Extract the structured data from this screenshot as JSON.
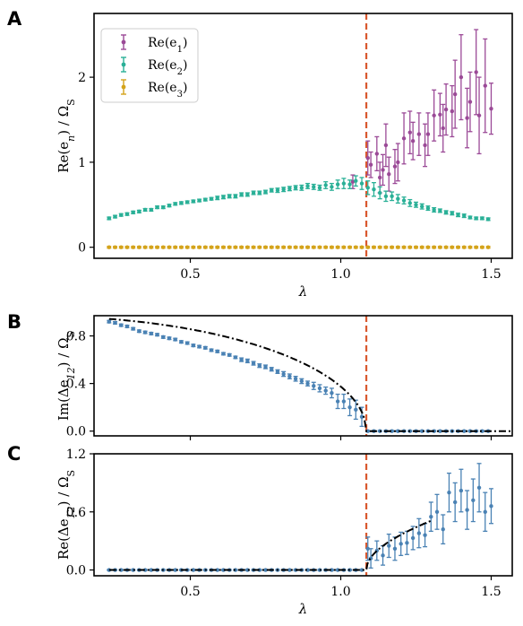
{
  "panel_letters": [
    "A",
    "B",
    "C"
  ],
  "chart_data": [
    {
      "id": "A",
      "type": "scatter",
      "xlabel": "λ",
      "ylabel": "Re(e_n) / Ω_S",
      "ylabel_parts": {
        "main": "Re(e",
        "sub": "n",
        "rest": ") / Ω",
        "sub2": "S"
      },
      "xlim": [
        0.18,
        1.57
      ],
      "ylim": [
        -0.13,
        2.75
      ],
      "xticks": [
        0.5,
        1.0,
        1.5
      ],
      "xtick_labels": [
        "0.5",
        "1.0",
        "1.5"
      ],
      "yticks": [
        0,
        1,
        2
      ],
      "ytick_labels": [
        "0",
        "1",
        "2"
      ],
      "vline": 1.085,
      "vline_color": "#d9582e",
      "legend_position": "top-left",
      "series": [
        {
          "name": "Re(e1)",
          "label_main": "Re(e",
          "label_sub": "1",
          "color": "#9b4a97",
          "x": [
            1.04,
            1.09,
            1.1,
            1.12,
            1.13,
            1.14,
            1.15,
            1.16,
            1.18,
            1.19,
            1.21,
            1.23,
            1.24,
            1.26,
            1.28,
            1.29,
            1.31,
            1.33,
            1.34,
            1.35,
            1.37,
            1.38,
            1.4,
            1.42,
            1.43,
            1.45,
            1.46,
            1.48,
            1.5
          ],
          "y": [
            0.77,
            1.05,
            0.97,
            1.1,
            0.82,
            0.91,
            1.2,
            0.86,
            0.95,
            1.0,
            1.28,
            1.35,
            1.25,
            1.33,
            1.2,
            1.33,
            1.55,
            1.56,
            1.4,
            1.62,
            1.6,
            1.8,
            2.0,
            1.52,
            1.71,
            2.06,
            1.55,
            1.9,
            1.63
          ],
          "err": [
            0.08,
            0.2,
            0.15,
            0.2,
            0.18,
            0.18,
            0.25,
            0.2,
            0.2,
            0.22,
            0.3,
            0.25,
            0.22,
            0.25,
            0.25,
            0.25,
            0.3,
            0.25,
            0.28,
            0.3,
            0.3,
            0.4,
            0.5,
            0.35,
            0.35,
            0.5,
            0.45,
            0.55,
            0.3
          ]
        },
        {
          "name": "Re(e2)",
          "label_main": "Re(e",
          "label_sub": "2",
          "color": "#2ab097",
          "x": [
            0.23,
            0.25,
            0.27,
            0.29,
            0.31,
            0.33,
            0.35,
            0.37,
            0.39,
            0.41,
            0.43,
            0.45,
            0.47,
            0.49,
            0.51,
            0.53,
            0.55,
            0.57,
            0.59,
            0.61,
            0.63,
            0.65,
            0.67,
            0.69,
            0.71,
            0.73,
            0.75,
            0.77,
            0.79,
            0.81,
            0.83,
            0.85,
            0.87,
            0.89,
            0.91,
            0.93,
            0.95,
            0.97,
            0.99,
            1.01,
            1.03,
            1.05,
            1.07,
            1.09,
            1.11,
            1.13,
            1.15,
            1.17,
            1.19,
            1.21,
            1.23,
            1.25,
            1.27,
            1.29,
            1.31,
            1.33,
            1.35,
            1.37,
            1.39,
            1.41,
            1.43,
            1.45,
            1.47,
            1.49
          ],
          "y": [
            0.34,
            0.36,
            0.38,
            0.39,
            0.41,
            0.42,
            0.44,
            0.44,
            0.47,
            0.47,
            0.49,
            0.51,
            0.52,
            0.53,
            0.54,
            0.55,
            0.56,
            0.57,
            0.58,
            0.59,
            0.6,
            0.6,
            0.62,
            0.62,
            0.64,
            0.64,
            0.65,
            0.67,
            0.67,
            0.68,
            0.69,
            0.7,
            0.7,
            0.72,
            0.71,
            0.7,
            0.73,
            0.71,
            0.74,
            0.75,
            0.74,
            0.78,
            0.75,
            0.7,
            0.68,
            0.64,
            0.6,
            0.6,
            0.57,
            0.55,
            0.52,
            0.5,
            0.48,
            0.46,
            0.44,
            0.43,
            0.41,
            0.4,
            0.38,
            0.37,
            0.35,
            0.34,
            0.34,
            0.33
          ],
          "err": [
            0.015,
            0.015,
            0.015,
            0.015,
            0.015,
            0.015,
            0.015,
            0.015,
            0.015,
            0.015,
            0.015,
            0.015,
            0.015,
            0.015,
            0.015,
            0.015,
            0.015,
            0.015,
            0.02,
            0.02,
            0.02,
            0.02,
            0.02,
            0.02,
            0.02,
            0.02,
            0.02,
            0.02,
            0.025,
            0.025,
            0.025,
            0.025,
            0.03,
            0.03,
            0.03,
            0.03,
            0.04,
            0.04,
            0.05,
            0.06,
            0.05,
            0.06,
            0.07,
            0.08,
            0.08,
            0.07,
            0.06,
            0.05,
            0.05,
            0.04,
            0.04,
            0.03,
            0.03,
            0.025,
            0.025,
            0.02,
            0.02,
            0.02,
            0.02,
            0.02,
            0.015,
            0.015,
            0.015,
            0.015
          ]
        },
        {
          "name": "Re(e3)",
          "label_main": "Re(e",
          "label_sub": "3",
          "color": "#d4a31a",
          "x": [
            0.23,
            0.25,
            0.27,
            0.29,
            0.31,
            0.33,
            0.35,
            0.37,
            0.39,
            0.41,
            0.43,
            0.45,
            0.47,
            0.49,
            0.51,
            0.53,
            0.55,
            0.57,
            0.59,
            0.61,
            0.63,
            0.65,
            0.67,
            0.69,
            0.71,
            0.73,
            0.75,
            0.77,
            0.79,
            0.81,
            0.83,
            0.85,
            0.87,
            0.89,
            0.91,
            0.93,
            0.95,
            0.97,
            0.99,
            1.01,
            1.03,
            1.05,
            1.07,
            1.09,
            1.11,
            1.13,
            1.15,
            1.17,
            1.19,
            1.21,
            1.23,
            1.25,
            1.27,
            1.29,
            1.31,
            1.33,
            1.35,
            1.37,
            1.39,
            1.41,
            1.43,
            1.45,
            1.47,
            1.49
          ],
          "y": [
            0,
            0,
            0,
            0,
            0,
            0,
            0,
            0,
            0,
            0,
            0,
            0,
            0,
            0,
            0,
            0,
            0,
            0,
            0,
            0,
            0,
            0,
            0,
            0,
            0,
            0,
            0,
            0,
            0,
            0,
            0,
            0,
            0,
            0,
            0,
            0,
            0,
            0,
            0,
            0,
            0,
            0,
            0,
            0,
            0,
            0,
            0,
            0,
            0,
            0,
            0,
            0,
            0,
            0,
            0,
            0,
            0,
            0,
            0,
            0,
            0,
            0,
            0,
            0
          ],
          "err": [
            0.01,
            0.01,
            0.01,
            0.01,
            0.01,
            0.01,
            0.01,
            0.01,
            0.01,
            0.01,
            0.01,
            0.01,
            0.01,
            0.01,
            0.01,
            0.01,
            0.01,
            0.01,
            0.01,
            0.01,
            0.01,
            0.01,
            0.01,
            0.01,
            0.01,
            0.01,
            0.01,
            0.01,
            0.01,
            0.01,
            0.01,
            0.01,
            0.01,
            0.01,
            0.01,
            0.01,
            0.01,
            0.01,
            0.01,
            0.01,
            0.01,
            0.01,
            0.01,
            0.01,
            0.01,
            0.01,
            0.01,
            0.01,
            0.01,
            0.01,
            0.01,
            0.01,
            0.01,
            0.01,
            0.01,
            0.01,
            0.01,
            0.01,
            0.01,
            0.01,
            0.01,
            0.01,
            0.01,
            0.01
          ]
        }
      ]
    },
    {
      "id": "B",
      "type": "scatter",
      "xlabel": "",
      "ylabel": "Im(Δe12) / ΩS",
      "ylabel_parts": {
        "main": "Im(Δe",
        "sub": "12",
        "rest": ") / Ω",
        "sub2": "S"
      },
      "xlim": [
        0.18,
        1.57
      ],
      "ylim": [
        -0.04,
        0.97
      ],
      "xticks": [
        0.5,
        1.0,
        1.5
      ],
      "xtick_labels": [
        "",
        "",
        ""
      ],
      "yticks": [
        0.0,
        0.4,
        0.8
      ],
      "ytick_labels": [
        "0.0",
        "0.4",
        "0.8"
      ],
      "vline": 1.085,
      "vline_color": "#d9582e",
      "theory_curve": {
        "type": "sqrt",
        "a": 0.965,
        "lambda_c": 1.085,
        "x_start": 0.23,
        "x_end": 1.57
      },
      "series": [
        {
          "name": "Im(Δe12)",
          "color": "#4a82b4",
          "x": [
            0.23,
            0.25,
            0.27,
            0.29,
            0.31,
            0.33,
            0.35,
            0.37,
            0.39,
            0.41,
            0.43,
            0.45,
            0.47,
            0.49,
            0.51,
            0.53,
            0.55,
            0.57,
            0.59,
            0.61,
            0.63,
            0.65,
            0.67,
            0.69,
            0.71,
            0.73,
            0.75,
            0.77,
            0.79,
            0.81,
            0.83,
            0.85,
            0.87,
            0.89,
            0.91,
            0.93,
            0.95,
            0.97,
            0.99,
            1.01,
            1.03,
            1.05,
            1.07,
            1.09,
            1.11,
            1.13,
            1.15,
            1.17,
            1.19,
            1.21,
            1.23,
            1.25,
            1.27,
            1.29,
            1.31,
            1.33,
            1.35,
            1.37,
            1.39,
            1.41,
            1.43,
            1.45,
            1.47,
            1.49
          ],
          "y": [
            0.92,
            0.91,
            0.89,
            0.88,
            0.86,
            0.84,
            0.83,
            0.82,
            0.81,
            0.79,
            0.78,
            0.77,
            0.75,
            0.74,
            0.72,
            0.71,
            0.7,
            0.68,
            0.67,
            0.65,
            0.64,
            0.62,
            0.6,
            0.59,
            0.57,
            0.55,
            0.54,
            0.52,
            0.5,
            0.48,
            0.46,
            0.44,
            0.42,
            0.4,
            0.38,
            0.36,
            0.34,
            0.32,
            0.25,
            0.25,
            0.2,
            0.18,
            0.12,
            0.0,
            0.0,
            0.0,
            0.0,
            0.0,
            0.0,
            0.0,
            0.0,
            0.0,
            0.0,
            0.0,
            0.0,
            0.0,
            0.0,
            0.0,
            0.0,
            0.0,
            0.0,
            0.0,
            0.0,
            0.0
          ],
          "err": [
            0.01,
            0.01,
            0.01,
            0.01,
            0.01,
            0.01,
            0.01,
            0.01,
            0.01,
            0.01,
            0.01,
            0.01,
            0.01,
            0.01,
            0.01,
            0.01,
            0.01,
            0.01,
            0.01,
            0.01,
            0.01,
            0.01,
            0.015,
            0.015,
            0.015,
            0.015,
            0.015,
            0.015,
            0.015,
            0.02,
            0.02,
            0.02,
            0.02,
            0.02,
            0.03,
            0.03,
            0.03,
            0.04,
            0.06,
            0.06,
            0.07,
            0.08,
            0.08,
            0.005,
            0.005,
            0.005,
            0.005,
            0.005,
            0.005,
            0.005,
            0.005,
            0.005,
            0.005,
            0.005,
            0.005,
            0.005,
            0.005,
            0.005,
            0.005,
            0.005,
            0.005,
            0.005,
            0.005,
            0.005
          ]
        }
      ]
    },
    {
      "id": "C",
      "type": "scatter",
      "xlabel": "λ",
      "ylabel": "Re(Δe12) / ΩS",
      "ylabel_parts": {
        "main": "Re(Δe",
        "sub": "12",
        "rest": ") / Ω",
        "sub2": "S"
      },
      "xlim": [
        0.18,
        1.57
      ],
      "ylim": [
        -0.06,
        1.2
      ],
      "xticks": [
        0.5,
        1.0,
        1.5
      ],
      "xtick_labels": [
        "0.5",
        "1.0",
        "1.5"
      ],
      "yticks": [
        0.0,
        0.6,
        1.2
      ],
      "ytick_labels": [
        "0.0",
        "0.6",
        "1.2"
      ],
      "vline": 1.085,
      "vline_color": "#d9582e",
      "theory_curve": {
        "type": "sqrt_above",
        "a": 0.77,
        "lambda_c": 1.085,
        "x_start": 0.23,
        "x_end": 1.3
      },
      "series": [
        {
          "name": "Re(Δe12)",
          "color": "#4a82b4",
          "x": [
            0.23,
            0.25,
            0.27,
            0.29,
            0.31,
            0.33,
            0.35,
            0.37,
            0.39,
            0.41,
            0.43,
            0.45,
            0.47,
            0.49,
            0.51,
            0.53,
            0.55,
            0.57,
            0.59,
            0.61,
            0.63,
            0.65,
            0.67,
            0.69,
            0.71,
            0.73,
            0.75,
            0.77,
            0.79,
            0.81,
            0.83,
            0.85,
            0.87,
            0.89,
            0.91,
            0.93,
            0.95,
            0.97,
            0.99,
            1.01,
            1.03,
            1.05,
            1.07,
            1.09,
            1.1,
            1.12,
            1.14,
            1.16,
            1.18,
            1.2,
            1.22,
            1.24,
            1.26,
            1.28,
            1.3,
            1.32,
            1.34,
            1.36,
            1.38,
            1.4,
            1.42,
            1.44,
            1.46,
            1.48,
            1.5
          ],
          "y": [
            0,
            0,
            0,
            0,
            0,
            0,
            0,
            0,
            0,
            0,
            0,
            0,
            0,
            0,
            0,
            0,
            0,
            0,
            0,
            0,
            0,
            0,
            0,
            0,
            0,
            0,
            0,
            0,
            0,
            0,
            0,
            0,
            0,
            0,
            0,
            0,
            0,
            0,
            0,
            0,
            0,
            0,
            0,
            0.22,
            0.12,
            0.2,
            0.15,
            0.25,
            0.22,
            0.27,
            0.28,
            0.33,
            0.38,
            0.36,
            0.55,
            0.6,
            0.42,
            0.8,
            0.7,
            0.82,
            0.62,
            0.72,
            0.85,
            0.6,
            0.66
          ],
          "err": [
            0.005,
            0.005,
            0.005,
            0.005,
            0.005,
            0.005,
            0.005,
            0.005,
            0.005,
            0.005,
            0.005,
            0.005,
            0.005,
            0.005,
            0.005,
            0.005,
            0.005,
            0.005,
            0.005,
            0.005,
            0.005,
            0.005,
            0.005,
            0.005,
            0.005,
            0.005,
            0.005,
            0.005,
            0.005,
            0.005,
            0.005,
            0.005,
            0.005,
            0.005,
            0.005,
            0.005,
            0.005,
            0.005,
            0.005,
            0.005,
            0.005,
            0.005,
            0.005,
            0.12,
            0.1,
            0.1,
            0.1,
            0.12,
            0.12,
            0.12,
            0.12,
            0.12,
            0.15,
            0.12,
            0.15,
            0.18,
            0.15,
            0.2,
            0.2,
            0.22,
            0.2,
            0.22,
            0.25,
            0.2,
            0.18
          ]
        }
      ]
    }
  ]
}
